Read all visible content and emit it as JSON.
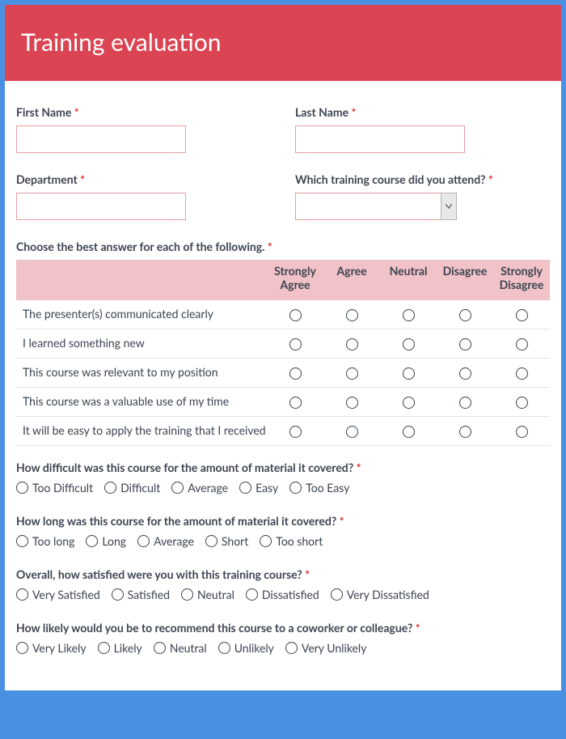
{
  "header": {
    "title": "Training evaluation"
  },
  "colors": {
    "frame": "#4a90e2",
    "header_bg": "#db4453",
    "header_text": "#ffffff",
    "body_bg": "#ffffff",
    "label_text": "#3b4450",
    "required": "#e03131",
    "input_border": "#e6a0a5",
    "matrix_head_bg": "#f1c2c7",
    "row_border": "#e5e5e5"
  },
  "fields": {
    "first_name": {
      "label": "First Name",
      "value": ""
    },
    "last_name": {
      "label": "Last Name",
      "value": ""
    },
    "department": {
      "label": "Department",
      "value": ""
    },
    "course": {
      "label": "Which training course did you attend?",
      "value": ""
    }
  },
  "matrix": {
    "label": "Choose the best answer for each of the following.",
    "columns": [
      "Strongly Agree",
      "Agree",
      "Neutral",
      "Disagree",
      "Strongly Disagree"
    ],
    "rows": [
      "The presenter(s) communicated clearly",
      "I learned something new",
      "This course was relevant to my position",
      "This course was a valuable use of my time",
      "It will be easy to apply the training that I received"
    ]
  },
  "questions": {
    "difficulty": {
      "label": "How difficult was this course for the amount of material it covered?",
      "options": [
        "Too Difficult",
        "Difficult",
        "Average",
        "Easy",
        "Too Easy"
      ]
    },
    "length": {
      "label": "How long was this course for the amount of material it covered?",
      "options": [
        "Too long",
        "Long",
        "Average",
        "Short",
        "Too short"
      ]
    },
    "satisfaction": {
      "label": "Overall, how satisfied were you with this training course?",
      "options": [
        "Very Satisfied",
        "Satisfied",
        "Neutral",
        "Dissatisfied",
        "Very Dissatisfied"
      ]
    },
    "recommend": {
      "label": "How likely would you be to recommend this course to a coworker or colleague?",
      "options": [
        "Very Likely",
        "Likely",
        "Neutral",
        "Unlikely",
        "Very Unlikely"
      ]
    }
  }
}
